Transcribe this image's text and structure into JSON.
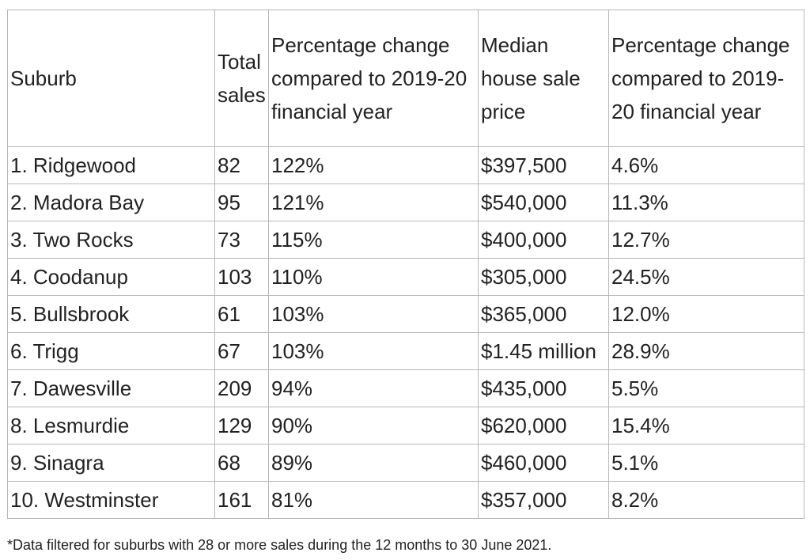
{
  "table": {
    "headers": {
      "suburb": "Suburb",
      "total_sales": "Total sales",
      "pct_change_sales": "Percentage change compared to 2019-20 financial year",
      "median_price": "Median house sale price",
      "pct_change_price": "Percentage change compared to 2019-20 financial year"
    },
    "rows": [
      {
        "suburb": "1. Ridgewood",
        "total_sales": "82",
        "pct_change_sales": "122%",
        "median_price": "$397,500",
        "pct_change_price": "4.6%"
      },
      {
        "suburb": "2. Madora Bay",
        "total_sales": "95",
        "pct_change_sales": "121%",
        "median_price": "$540,000",
        "pct_change_price": "11.3%"
      },
      {
        "suburb": "3. Two Rocks",
        "total_sales": "73",
        "pct_change_sales": "115%",
        "median_price": "$400,000",
        "pct_change_price": "12.7%"
      },
      {
        "suburb": "4. Coodanup",
        "total_sales": "103",
        "pct_change_sales": "110%",
        "median_price": "$305,000",
        "pct_change_price": "24.5%"
      },
      {
        "suburb": "5. Bullsbrook",
        "total_sales": "61",
        "pct_change_sales": "103%",
        "median_price": "$365,000",
        "pct_change_price": "12.0%"
      },
      {
        "suburb": "6. Trigg",
        "total_sales": "67",
        "pct_change_sales": "103%",
        "median_price": "$1.45 million",
        "pct_change_price": "28.9%"
      },
      {
        "suburb": "7. Dawesville",
        "total_sales": "209",
        "pct_change_sales": "94%",
        "median_price": "$435,000",
        "pct_change_price": "5.5%"
      },
      {
        "suburb": "8. Lesmurdie",
        "total_sales": "129",
        "pct_change_sales": "90%",
        "median_price": "$620,000",
        "pct_change_price": "15.4%"
      },
      {
        "suburb": "9. Sinagra",
        "total_sales": "68",
        "pct_change_sales": "89%",
        "median_price": "$460,000",
        "pct_change_price": "5.1%"
      },
      {
        "suburb": "10. Westminster",
        "total_sales": "161",
        "pct_change_sales": "81%",
        "median_price": "$357,000",
        "pct_change_price": "8.2%"
      }
    ]
  },
  "footnote": "*Data filtered for suburbs with 28 or more sales during the 12 months to 30 June 2021."
}
